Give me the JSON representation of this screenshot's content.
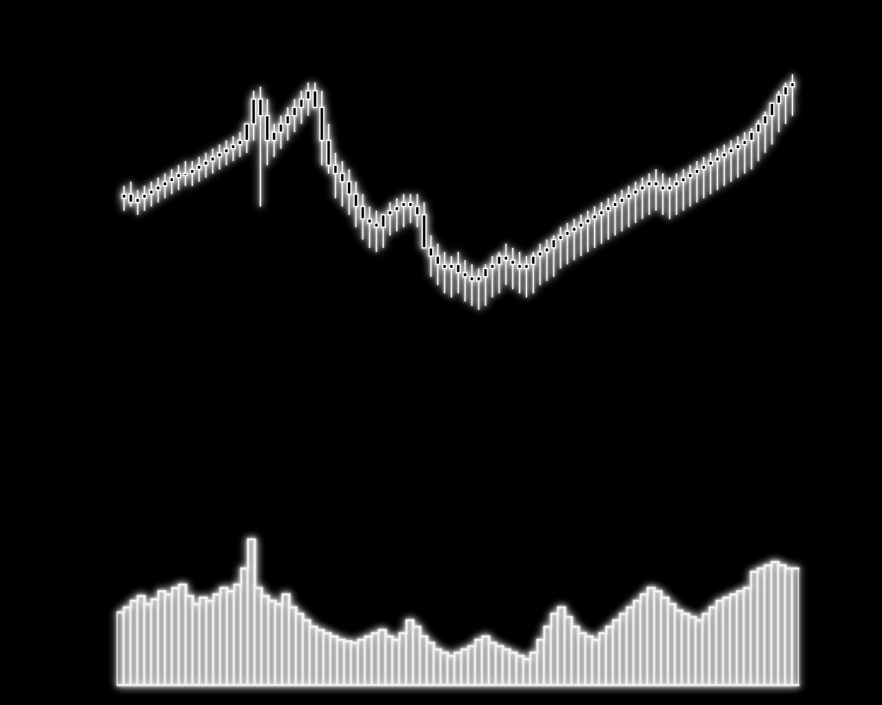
{
  "chart_data": [
    {
      "type": "candlestick",
      "title": "",
      "xlabel": "",
      "ylabel": "",
      "grid": false,
      "ylim": [
        0,
        100
      ],
      "x": [
        1,
        2,
        3,
        4,
        5,
        6,
        7,
        8,
        9,
        10,
        11,
        12,
        13,
        14,
        15,
        16,
        17,
        18,
        19,
        20,
        21,
        22,
        23,
        24,
        25,
        26,
        27,
        28,
        29,
        30,
        31,
        32,
        33,
        34,
        35,
        36,
        37,
        38,
        39,
        40,
        41,
        42,
        43,
        44,
        45,
        46,
        47,
        48,
        49,
        50,
        51,
        52,
        53,
        54,
        55,
        56,
        57,
        58,
        59,
        60,
        61,
        62,
        63,
        64,
        65,
        66,
        67,
        68,
        69,
        70,
        71,
        72,
        73,
        74,
        75,
        76,
        77,
        78,
        79,
        80,
        81,
        82,
        83,
        84,
        85,
        86,
        87,
        88,
        89,
        90,
        91,
        92,
        93,
        94,
        95,
        96,
        97,
        98,
        99
      ],
      "open": [
        62,
        63,
        61,
        62,
        63,
        64,
        65,
        66,
        67,
        68,
        68,
        69,
        70,
        71,
        72,
        73,
        74,
        75,
        76,
        80,
        86,
        82,
        76,
        78,
        80,
        82,
        84,
        86,
        88,
        84,
        76,
        70,
        68,
        66,
        63,
        60,
        57,
        56,
        55,
        58,
        59,
        60,
        61,
        60,
        58,
        50,
        48,
        46,
        45,
        46,
        44,
        43,
        42,
        43,
        45,
        46,
        48,
        47,
        46,
        45,
        46,
        48,
        49,
        50,
        52,
        53,
        54,
        55,
        56,
        57,
        58,
        59,
        60,
        61,
        62,
        63,
        64,
        65,
        66,
        65,
        64,
        65,
        66,
        67,
        68,
        69,
        70,
        71,
        72,
        73,
        74,
        75,
        76,
        78,
        80,
        82,
        85,
        87,
        89
      ],
      "high": [
        65,
        66,
        64,
        65,
        66,
        67,
        68,
        69,
        70,
        71,
        71,
        72,
        73,
        74,
        75,
        76,
        77,
        78,
        80,
        88,
        89,
        86,
        80,
        82,
        84,
        86,
        88,
        90,
        90,
        88,
        80,
        73,
        71,
        69,
        66,
        63,
        60,
        59,
        58,
        61,
        62,
        63,
        63,
        63,
        61,
        53,
        51,
        49,
        48,
        49,
        47,
        46,
        45,
        46,
        48,
        49,
        51,
        50,
        49,
        48,
        49,
        51,
        52,
        53,
        55,
        56,
        57,
        58,
        59,
        60,
        61,
        62,
        63,
        64,
        65,
        66,
        67,
        68,
        69,
        68,
        67,
        68,
        69,
        70,
        71,
        72,
        73,
        74,
        75,
        76,
        77,
        78,
        79,
        81,
        83,
        85,
        88,
        90,
        92
      ],
      "low": [
        59,
        60,
        58,
        59,
        60,
        61,
        62,
        63,
        64,
        65,
        65,
        66,
        67,
        68,
        69,
        70,
        71,
        72,
        73,
        76,
        60,
        70,
        72,
        74,
        76,
        78,
        80,
        82,
        84,
        70,
        68,
        62,
        60,
        58,
        55,
        52,
        50,
        49,
        50,
        53,
        54,
        55,
        56,
        55,
        50,
        43,
        41,
        39,
        38,
        39,
        37,
        36,
        35,
        36,
        38,
        39,
        41,
        40,
        39,
        38,
        39,
        41,
        42,
        43,
        45,
        46,
        47,
        48,
        49,
        50,
        51,
        52,
        53,
        54,
        55,
        56,
        57,
        58,
        59,
        58,
        57,
        58,
        59,
        60,
        61,
        62,
        63,
        64,
        65,
        66,
        67,
        68,
        69,
        71,
        73,
        75,
        78,
        80,
        82
      ],
      "close": [
        63,
        61,
        62,
        63,
        64,
        65,
        66,
        67,
        68,
        68,
        69,
        70,
        71,
        72,
        73,
        74,
        75,
        76,
        80,
        86,
        82,
        76,
        78,
        80,
        82,
        84,
        86,
        88,
        84,
        76,
        70,
        68,
        66,
        63,
        60,
        57,
        56,
        55,
        58,
        59,
        60,
        61,
        60,
        58,
        50,
        48,
        46,
        45,
        46,
        44,
        43,
        42,
        43,
        45,
        46,
        48,
        47,
        46,
        45,
        46,
        48,
        49,
        50,
        52,
        53,
        54,
        55,
        56,
        57,
        58,
        59,
        60,
        61,
        62,
        63,
        64,
        65,
        66,
        65,
        64,
        65,
        66,
        67,
        68,
        69,
        70,
        71,
        72,
        73,
        74,
        75,
        76,
        78,
        80,
        82,
        85,
        87,
        89,
        90
      ]
    },
    {
      "type": "bar",
      "title": "",
      "xlabel": "",
      "ylabel": "",
      "grid": false,
      "ylim": [
        0,
        100
      ],
      "x": [
        1,
        2,
        3,
        4,
        5,
        6,
        7,
        8,
        9,
        10,
        11,
        12,
        13,
        14,
        15,
        16,
        17,
        18,
        19,
        20,
        21,
        22,
        23,
        24,
        25,
        26,
        27,
        28,
        29,
        30,
        31,
        32,
        33,
        34,
        35,
        36,
        37,
        38,
        39,
        40,
        41,
        42,
        43,
        44,
        45,
        46,
        47,
        48,
        49,
        50,
        51,
        52,
        53,
        54,
        55,
        56,
        57,
        58,
        59,
        60,
        61,
        62,
        63,
        64,
        65,
        66,
        67,
        68,
        69,
        70,
        71,
        72,
        73,
        74,
        75,
        76,
        77,
        78,
        79,
        80,
        81,
        82,
        83,
        84,
        85,
        86,
        87,
        88,
        89,
        90,
        91,
        92,
        93,
        94,
        95,
        96,
        97,
        98,
        99
      ],
      "values": [
        45,
        48,
        52,
        55,
        50,
        53,
        58,
        56,
        60,
        62,
        55,
        50,
        54,
        52,
        56,
        60,
        58,
        62,
        72,
        90,
        60,
        55,
        52,
        50,
        56,
        48,
        44,
        40,
        36,
        34,
        32,
        30,
        28,
        27,
        26,
        28,
        30,
        32,
        34,
        30,
        28,
        32,
        40,
        36,
        30,
        26,
        22,
        20,
        18,
        20,
        22,
        24,
        28,
        30,
        26,
        24,
        22,
        20,
        18,
        16,
        20,
        28,
        36,
        44,
        48,
        42,
        36,
        32,
        30,
        28,
        32,
        36,
        40,
        44,
        48,
        52,
        56,
        60,
        58,
        54,
        50,
        46,
        44,
        42,
        40,
        44,
        48,
        52,
        54,
        56,
        58,
        60,
        70,
        72,
        74,
        76,
        74,
        72,
        72
      ]
    }
  ]
}
